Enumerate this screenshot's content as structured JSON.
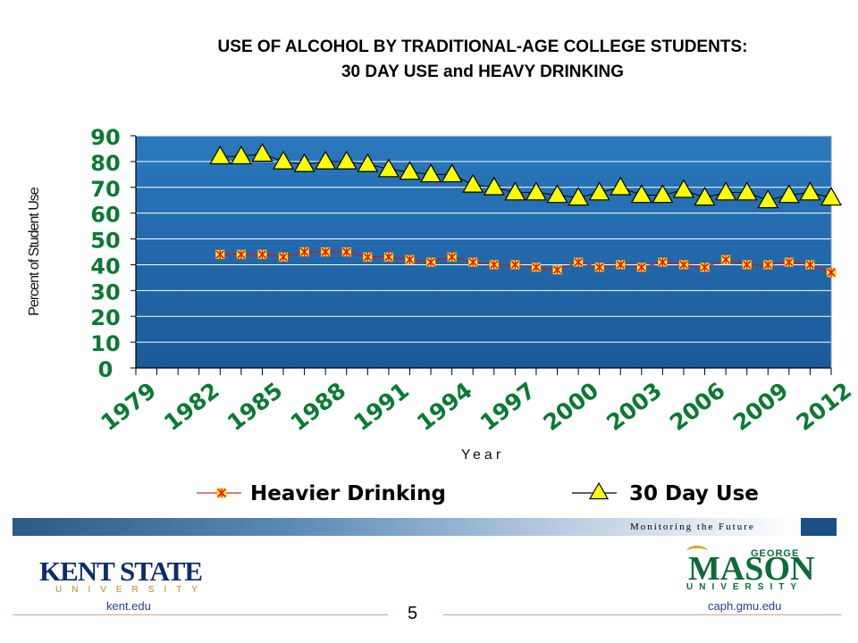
{
  "title_line1": "USE OF ALCOHOL BY TRADITIONAL-AGE COLLEGE STUDENTS:",
  "title_line2": "30 DAY USE and HEAVY DRINKING",
  "chart_data": {
    "type": "line",
    "xlabel": "Year",
    "ylabel": "Percent of Student Use",
    "ylim": [
      0,
      90
    ],
    "yticks": [
      0,
      10,
      20,
      30,
      40,
      50,
      60,
      70,
      80,
      90
    ],
    "xlim": [
      1979,
      2012
    ],
    "xticks": [
      1979,
      1982,
      1985,
      1988,
      1991,
      1994,
      1997,
      2000,
      2003,
      2006,
      2009,
      2012
    ],
    "grid": true,
    "legend_position": "bottom",
    "background": "#1f65a6",
    "x": [
      1983,
      1984,
      1985,
      1986,
      1987,
      1988,
      1989,
      1990,
      1991,
      1992,
      1993,
      1994,
      1995,
      1996,
      1997,
      1998,
      1999,
      2000,
      2001,
      2002,
      2003,
      2004,
      2005,
      2006,
      2007,
      2008,
      2009,
      2010,
      2011,
      2012
    ],
    "series": [
      {
        "name": "Heavier Drinking",
        "marker": "asterisk",
        "color": "#ff0000",
        "marker_fill": "#f5ff00",
        "values": [
          44,
          44,
          44,
          43,
          45,
          45,
          45,
          43,
          43,
          42,
          41,
          43,
          41,
          40,
          40,
          39,
          38,
          41,
          39,
          40,
          39,
          41,
          40,
          39,
          42,
          40,
          40,
          41,
          40,
          37
        ]
      },
      {
        "name": "30 Day Use",
        "marker": "triangle",
        "color": "#000000",
        "marker_fill": "#ffff00",
        "values": [
          82,
          82,
          83,
          80,
          79,
          80,
          80,
          79,
          77,
          76,
          75,
          75,
          71,
          70,
          68,
          68,
          67,
          66,
          68,
          70,
          67,
          67,
          69,
          66,
          68,
          68,
          65,
          67,
          68,
          66
        ]
      }
    ]
  },
  "footer": {
    "banner_text": "Monitoring the Future",
    "left_link": "kent.edu",
    "right_link": "caph.gmu.edu",
    "page_number": "5",
    "left_logo_main": "KENT STATE",
    "left_logo_sub": "UNIVERSITY",
    "right_logo_top": "GEORGE",
    "right_logo_main": "MASON",
    "right_logo_sub": "UNIVERSITY"
  }
}
